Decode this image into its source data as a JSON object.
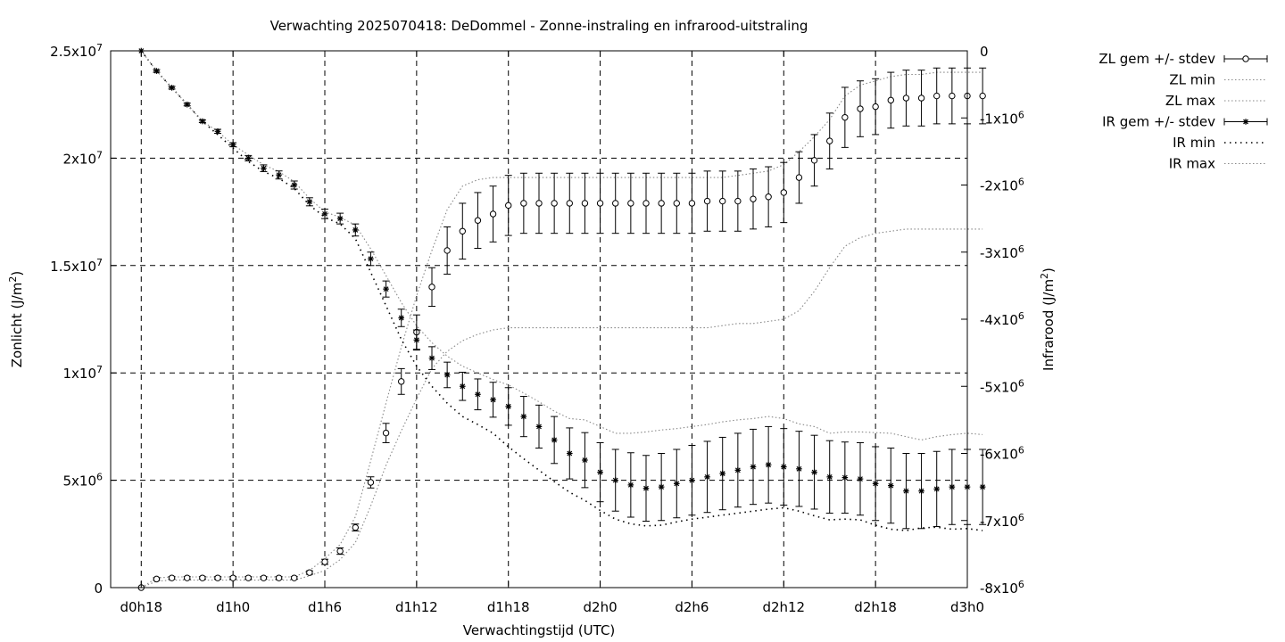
{
  "chart_data": {
    "type": "line",
    "title": "Verwachting 2025070418: DeDommel - Zonne-instraling en infrarood-uitstraling",
    "xlabel": "Verwachtingstijd (UTC)",
    "ylabel_left": "Zonlicht (J/m2)",
    "ylabel_right": "Infrarood (J/m2)",
    "x_start_hour": 18,
    "x_step_hours": 1,
    "xlim_hours": [
      16,
      72
    ],
    "x_ticks": [
      {
        "hour": 18,
        "label": "d0h18"
      },
      {
        "hour": 24,
        "label": "d1h0"
      },
      {
        "hour": 30,
        "label": "d1h6"
      },
      {
        "hour": 36,
        "label": "d1h12"
      },
      {
        "hour": 42,
        "label": "d1h18"
      },
      {
        "hour": 48,
        "label": "d2h0"
      },
      {
        "hour": 54,
        "label": "d2h6"
      },
      {
        "hour": 60,
        "label": "d2h12"
      },
      {
        "hour": 66,
        "label": "d2h18"
      },
      {
        "hour": 72,
        "label": "d3h0"
      }
    ],
    "ylim_left": [
      0,
      25000000
    ],
    "y_ticks_left": [
      {
        "value": 0,
        "label": "0"
      },
      {
        "value": 5000000,
        "label": "5x10^6"
      },
      {
        "value": 10000000,
        "label": "1x10^7"
      },
      {
        "value": 15000000,
        "label": "1.5x10^7"
      },
      {
        "value": 20000000,
        "label": "2x10^7"
      },
      {
        "value": 25000000,
        "label": "2.5x10^7"
      }
    ],
    "ylim_right": [
      -8000000,
      0
    ],
    "y_ticks_right": [
      {
        "value": 0,
        "label": "0"
      },
      {
        "value": -1000000,
        "label": "-1x10^6"
      },
      {
        "value": -2000000,
        "label": "-2x10^6"
      },
      {
        "value": -3000000,
        "label": "-3x10^6"
      },
      {
        "value": -4000000,
        "label": "-4x10^6"
      },
      {
        "value": -5000000,
        "label": "-5x10^6"
      },
      {
        "value": -6000000,
        "label": "-6x10^6"
      },
      {
        "value": -7000000,
        "label": "-7x10^6"
      },
      {
        "value": -8000000,
        "label": "-8x10^6"
      }
    ],
    "grid": true,
    "legend_position": "outside-top-right",
    "series": [
      {
        "name": "ZL gem +/- stdev",
        "axis": "left",
        "marker": "circle",
        "values": [
          0,
          400000,
          450000,
          450000,
          450000,
          450000,
          450000,
          450000,
          450000,
          450000,
          450000,
          700000,
          1200000,
          1700000,
          2800000,
          4900000,
          7200000,
          9600000,
          11900000,
          14000000,
          15700000,
          16600000,
          17100000,
          17400000,
          17800000,
          17900000,
          17900000,
          17900000,
          17900000,
          17900000,
          17900000,
          17900000,
          17900000,
          17900000,
          17900000,
          17900000,
          17900000,
          18000000,
          18000000,
          18000000,
          18100000,
          18200000,
          18400000,
          19100000,
          19900000,
          20800000,
          21900000,
          22300000,
          22400000,
          22700000,
          22800000,
          22800000,
          22900000,
          22900000,
          22900000,
          22900000
        ],
        "stdev": [
          0,
          60000,
          60000,
          60000,
          60000,
          60000,
          60000,
          60000,
          60000,
          60000,
          60000,
          80000,
          120000,
          150000,
          160000,
          260000,
          450000,
          600000,
          800000,
          900000,
          1100000,
          1300000,
          1300000,
          1300000,
          1400000,
          1400000,
          1400000,
          1400000,
          1400000,
          1400000,
          1400000,
          1400000,
          1400000,
          1400000,
          1400000,
          1400000,
          1400000,
          1400000,
          1400000,
          1400000,
          1400000,
          1400000,
          1400000,
          1200000,
          1200000,
          1300000,
          1400000,
          1300000,
          1300000,
          1300000,
          1300000,
          1300000,
          1300000,
          1300000,
          1300000,
          1300000
        ]
      },
      {
        "name": "ZL min",
        "axis": "left",
        "values": [
          0,
          300000,
          350000,
          350000,
          350000,
          350000,
          350000,
          350000,
          350000,
          350000,
          350000,
          550000,
          800000,
          1300000,
          2100000,
          3800000,
          5700000,
          7300000,
          8800000,
          10200000,
          11000000,
          11500000,
          11800000,
          12000000,
          12100000,
          12100000,
          12100000,
          12100000,
          12100000,
          12100000,
          12100000,
          12100000,
          12100000,
          12100000,
          12100000,
          12100000,
          12100000,
          12100000,
          12200000,
          12300000,
          12300000,
          12400000,
          12500000,
          12900000,
          13800000,
          14900000,
          15900000,
          16300000,
          16500000,
          16600000,
          16700000,
          16700000,
          16700000,
          16700000,
          16700000,
          16700000
        ]
      },
      {
        "name": "ZL max",
        "axis": "left",
        "values": [
          0,
          450000,
          500000,
          500000,
          500000,
          500000,
          500000,
          500000,
          500000,
          500000,
          500000,
          800000,
          1350000,
          2000000,
          3300000,
          5900000,
          8600000,
          11200000,
          13600000,
          15700000,
          17600000,
          18700000,
          19000000,
          19100000,
          19100000,
          19100000,
          19100000,
          19100000,
          19100000,
          19100000,
          19100000,
          19100000,
          19100000,
          19100000,
          19100000,
          19100000,
          19100000,
          19100000,
          19100000,
          19200000,
          19300000,
          19400000,
          19700000,
          20300000,
          21000000,
          21800000,
          22900000,
          23400000,
          23600000,
          23800000,
          23900000,
          23900000,
          24000000,
          24000000,
          24000000,
          24000000
        ]
      },
      {
        "name": "IR gem +/- stdev",
        "axis": "right",
        "marker": "star",
        "values": [
          0,
          -300000,
          -550000,
          -800000,
          -1050000,
          -1200000,
          -1400000,
          -1600000,
          -1750000,
          -1850000,
          -2000000,
          -2250000,
          -2430000,
          -2500000,
          -2670000,
          -3100000,
          -3550000,
          -3980000,
          -4310000,
          -4580000,
          -4830000,
          -5000000,
          -5120000,
          -5200000,
          -5300000,
          -5450000,
          -5600000,
          -5800000,
          -6000000,
          -6100000,
          -6280000,
          -6400000,
          -6470000,
          -6520000,
          -6500000,
          -6450000,
          -6400000,
          -6350000,
          -6300000,
          -6250000,
          -6200000,
          -6170000,
          -6200000,
          -6230000,
          -6280000,
          -6350000,
          -6360000,
          -6380000,
          -6450000,
          -6480000,
          -6560000,
          -6560000,
          -6530000,
          -6500000,
          -6500000,
          -6500000
        ],
        "stdev": [
          0,
          20000,
          20000,
          20000,
          20000,
          30000,
          30000,
          40000,
          50000,
          60000,
          60000,
          60000,
          70000,
          80000,
          90000,
          100000,
          120000,
          130000,
          150000,
          170000,
          190000,
          210000,
          230000,
          260000,
          280000,
          300000,
          320000,
          350000,
          380000,
          410000,
          440000,
          460000,
          480000,
          490000,
          500000,
          510000,
          520000,
          530000,
          540000,
          550000,
          560000,
          570000,
          570000,
          560000,
          550000,
          540000,
          530000,
          540000,
          550000,
          560000,
          560000,
          560000,
          560000,
          560000,
          560000,
          560000
        ]
      },
      {
        "name": "IR min",
        "axis": "right",
        "values": [
          0,
          -300000,
          -550000,
          -800000,
          -1050000,
          -1250000,
          -1450000,
          -1650000,
          -1800000,
          -1900000,
          -2050000,
          -2300000,
          -2480000,
          -2580000,
          -2800000,
          -3300000,
          -3800000,
          -4300000,
          -4700000,
          -5000000,
          -5250000,
          -5450000,
          -5570000,
          -5700000,
          -5900000,
          -6080000,
          -6250000,
          -6420000,
          -6580000,
          -6700000,
          -6850000,
          -6980000,
          -7050000,
          -7080000,
          -7070000,
          -7020000,
          -6980000,
          -6950000,
          -6920000,
          -6890000,
          -6860000,
          -6830000,
          -6810000,
          -6860000,
          -6930000,
          -6990000,
          -6980000,
          -6990000,
          -7070000,
          -7130000,
          -7150000,
          -7110000,
          -7100000,
          -7130000,
          -7120000,
          -7150000
        ]
      },
      {
        "name": "IR max",
        "axis": "right",
        "values": [
          0,
          -300000,
          -550000,
          -800000,
          -1050000,
          -1200000,
          -1400000,
          -1550000,
          -1700000,
          -1800000,
          -1950000,
          -2200000,
          -2400000,
          -2480000,
          -2600000,
          -2950000,
          -3350000,
          -3750000,
          -4100000,
          -4350000,
          -4550000,
          -4700000,
          -4800000,
          -4900000,
          -4980000,
          -5100000,
          -5230000,
          -5370000,
          -5480000,
          -5500000,
          -5600000,
          -5700000,
          -5700000,
          -5680000,
          -5650000,
          -5630000,
          -5600000,
          -5570000,
          -5530000,
          -5500000,
          -5480000,
          -5450000,
          -5480000,
          -5560000,
          -5600000,
          -5700000,
          -5680000,
          -5680000,
          -5690000,
          -5700000,
          -5750000,
          -5800000,
          -5750000,
          -5720000,
          -5700000,
          -5720000
        ]
      }
    ]
  },
  "legend": [
    {
      "label": "ZL gem +/- stdev",
      "style": "errorbar-circle"
    },
    {
      "label": "ZL min",
      "style": "dotted-grey"
    },
    {
      "label": "ZL max",
      "style": "dotted-grey"
    },
    {
      "label": "IR gem +/- stdev",
      "style": "errorbar-star"
    },
    {
      "label": "IR min",
      "style": "dotted-black"
    },
    {
      "label": "IR max",
      "style": "dotted-grey"
    }
  ]
}
